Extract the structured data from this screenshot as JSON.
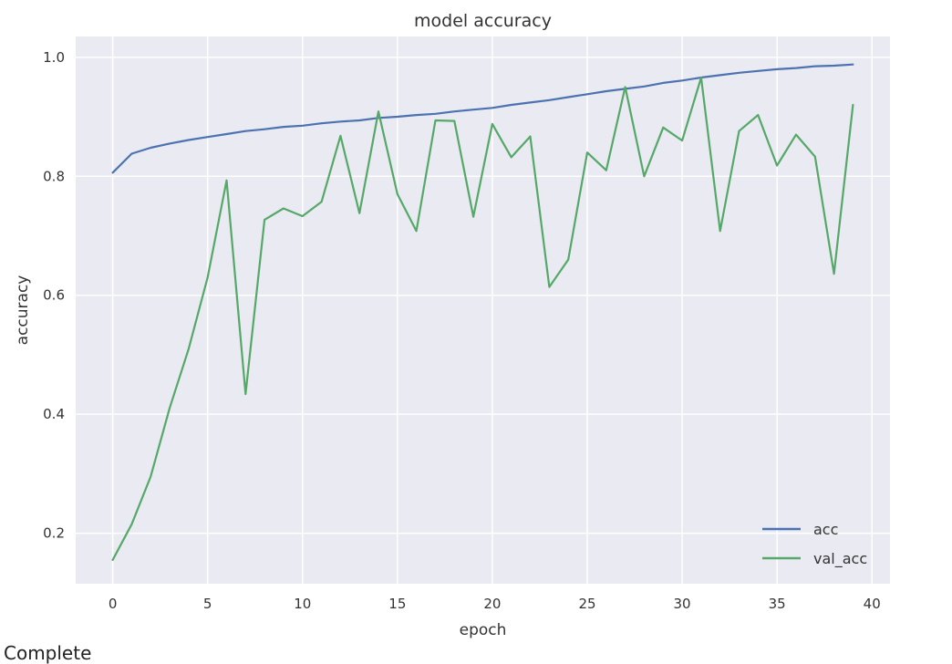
{
  "chart_data": {
    "type": "line",
    "title": "model accuracy",
    "xlabel": "epoch",
    "ylabel": "accuracy",
    "xlim": [
      -1.95,
      40.95
    ],
    "ylim": [
      0.115,
      1.035
    ],
    "xticks": [
      0,
      5,
      10,
      15,
      20,
      25,
      30,
      35,
      40
    ],
    "yticks": [
      0.2,
      0.4,
      0.6,
      0.8,
      1.0
    ],
    "ytick_labels": [
      "0.2",
      "0.4",
      "0.6",
      "0.8",
      "1.0"
    ],
    "grid": true,
    "legend_position": "lower-right",
    "x": [
      0,
      1,
      2,
      3,
      4,
      5,
      6,
      7,
      8,
      9,
      10,
      11,
      12,
      13,
      14,
      15,
      16,
      17,
      18,
      19,
      20,
      21,
      22,
      23,
      24,
      25,
      26,
      27,
      28,
      29,
      30,
      31,
      32,
      33,
      34,
      35,
      36,
      37,
      38,
      39
    ],
    "series": [
      {
        "name": "acc",
        "color": "#4c72b0",
        "values": [
          0.806,
          0.838,
          0.848,
          0.855,
          0.861,
          0.866,
          0.871,
          0.876,
          0.879,
          0.883,
          0.885,
          0.889,
          0.892,
          0.894,
          0.898,
          0.9,
          0.903,
          0.905,
          0.909,
          0.912,
          0.915,
          0.92,
          0.924,
          0.928,
          0.933,
          0.938,
          0.943,
          0.947,
          0.951,
          0.957,
          0.961,
          0.966,
          0.97,
          0.974,
          0.977,
          0.98,
          0.982,
          0.985,
          0.986,
          0.988
        ]
      },
      {
        "name": "val_acc",
        "color": "#55a868",
        "values": [
          0.155,
          0.215,
          0.295,
          0.41,
          0.51,
          0.63,
          0.793,
          0.434,
          0.727,
          0.746,
          0.733,
          0.757,
          0.868,
          0.738,
          0.909,
          0.77,
          0.708,
          0.894,
          0.893,
          0.732,
          0.888,
          0.832,
          0.867,
          0.614,
          0.66,
          0.84,
          0.81,
          0.95,
          0.8,
          0.882,
          0.86,
          0.966,
          0.708,
          0.876,
          0.903,
          0.818,
          0.87,
          0.833,
          0.636,
          0.92
        ]
      }
    ]
  },
  "footer": {
    "text": "Complete"
  }
}
